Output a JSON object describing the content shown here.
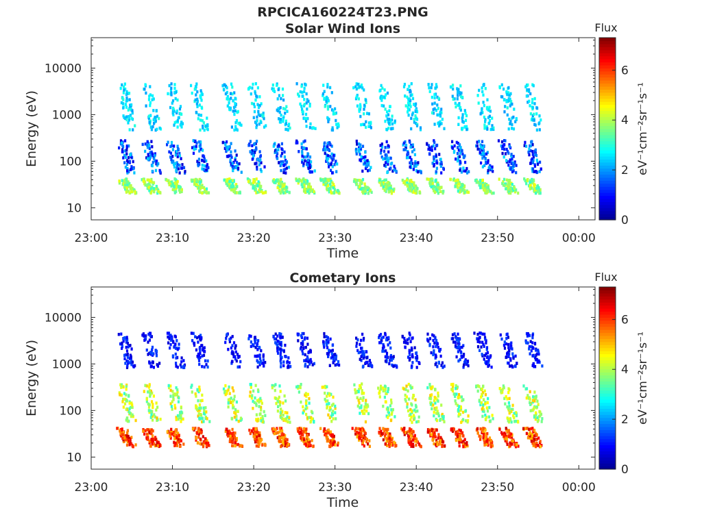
{
  "figure_title": "RPCICA160224T23.PNG",
  "colors": {
    "colormap": [
      "#00008f",
      "#0000ff",
      "#0080ff",
      "#00ffff",
      "#80ff80",
      "#ffff00",
      "#ff8000",
      "#ff0000",
      "#800000"
    ],
    "axis": "#262626",
    "background": "#ffffff"
  },
  "chart_data": [
    {
      "type": "heatmap",
      "title": "Solar Wind Ions",
      "xlabel": "Time",
      "ylabel": "Energy (eV)",
      "x_ticks": [
        "23:00",
        "23:10",
        "23:20",
        "23:30",
        "23:40",
        "23:50",
        "00:00"
      ],
      "x_range_minutes": [
        0,
        62
      ],
      "y_scale": "log",
      "y_ticks": [
        "10",
        "100",
        "1000",
        "10000"
      ],
      "y_range": [
        5.5,
        45000
      ],
      "colorbar": {
        "title": "Flux",
        "unit": "eV⁻¹cm⁻²sr⁻¹s⁻¹",
        "ticks": [
          "0",
          "2",
          "4",
          "6"
        ],
        "range": [
          0,
          7.3
        ]
      },
      "sweep_start_minutes": [
        3,
        6,
        9,
        12,
        16,
        19,
        22,
        25,
        28,
        32,
        35,
        38,
        41,
        44,
        47,
        50,
        53
      ],
      "bands": [
        {
          "name": "high-energy",
          "energy_range": [
            500,
            5000
          ],
          "flux_range": [
            2,
            3
          ]
        },
        {
          "name": "mid-energy",
          "energy_range": [
            60,
            300
          ],
          "flux_range": [
            0.5,
            2.5
          ]
        },
        {
          "name": "low-energy",
          "energy_range": [
            22,
            45
          ],
          "flux_range": [
            3,
            4.5
          ]
        }
      ],
      "grid": false
    },
    {
      "type": "heatmap",
      "title": "Cometary Ions",
      "xlabel": "Time",
      "ylabel": "Energy (eV)",
      "x_ticks": [
        "23:00",
        "23:10",
        "23:20",
        "23:30",
        "23:40",
        "23:50",
        "00:00"
      ],
      "x_range_minutes": [
        0,
        62
      ],
      "y_scale": "log",
      "y_ticks": [
        "10",
        "100",
        "1000",
        "10000"
      ],
      "y_range": [
        5.5,
        45000
      ],
      "colorbar": {
        "title": "Flux",
        "unit": "eV⁻¹cm⁻²sr⁻¹s⁻¹",
        "ticks": [
          "0",
          "2",
          "4",
          "6"
        ],
        "range": [
          0,
          7.3
        ]
      },
      "sweep_start_minutes": [
        3,
        6,
        9,
        12,
        16,
        19,
        22,
        25,
        28,
        32,
        35,
        38,
        41,
        44,
        47,
        50,
        53
      ],
      "bands": [
        {
          "name": "high-energy",
          "energy_range": [
            900,
            5000
          ],
          "flux_range": [
            0.5,
            1.5
          ]
        },
        {
          "name": "mid-energy",
          "energy_range": [
            60,
            400
          ],
          "flux_range": [
            3,
            5
          ]
        },
        {
          "name": "low-energy",
          "energy_range": [
            18,
            45
          ],
          "flux_range": [
            5,
            6.8
          ]
        }
      ],
      "grid": false
    }
  ]
}
